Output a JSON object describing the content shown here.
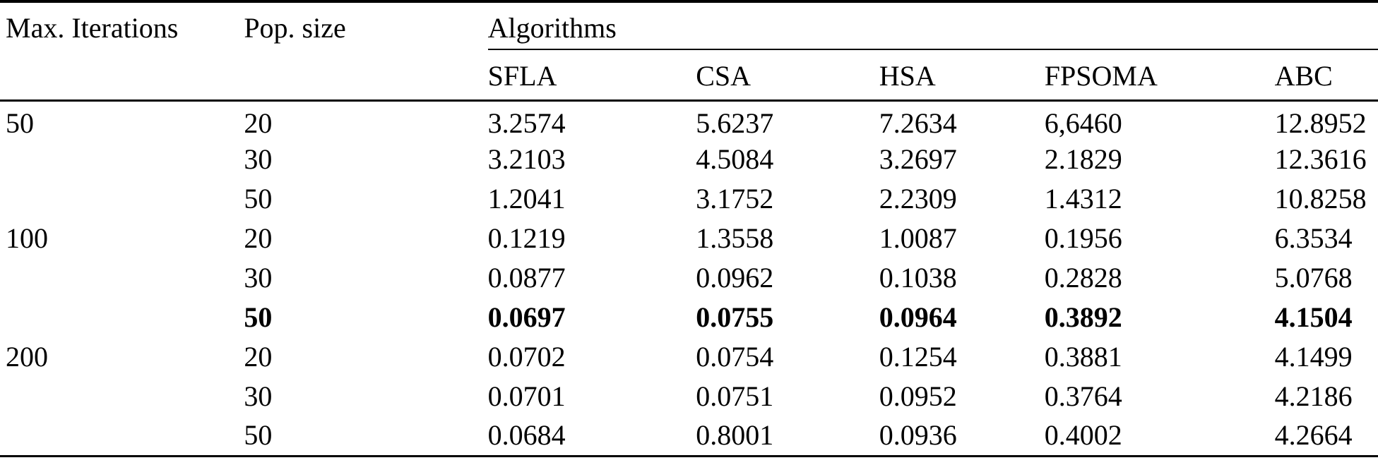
{
  "table": {
    "col1_header": "Max. Iterations",
    "col2_header": "Pop. size",
    "group_header": "Algorithms",
    "algorithm_headers": [
      "SFLA",
      "CSA",
      "HSA",
      "FPSOMA",
      "ABC"
    ],
    "rows": [
      {
        "max_iterations": "50",
        "pop_size": "20",
        "values": [
          "3.2574",
          "5.6237",
          "7.2634",
          "6,6460",
          "12.8952"
        ]
      },
      {
        "max_iterations": "",
        "pop_size": "30",
        "values": [
          "3.2103",
          "4.5084",
          "3.2697",
          "2.1829",
          "12.3616"
        ]
      },
      {
        "max_iterations": "",
        "pop_size": "50",
        "values": [
          "1.2041",
          "3.1752",
          "2.2309",
          "1.4312",
          "10.8258"
        ]
      },
      {
        "max_iterations": "100",
        "pop_size": "20",
        "values": [
          "0.1219",
          "1.3558",
          "1.0087",
          "0.1956",
          "6.3534"
        ]
      },
      {
        "max_iterations": "",
        "pop_size": "30",
        "values": [
          "0.0877",
          "0.0962",
          "0.1038",
          "0.2828",
          "5.0768"
        ]
      },
      {
        "max_iterations": "",
        "pop_size": "50",
        "values": [
          "0.0697",
          "0.0755",
          "0.0964",
          "0.3892",
          "4.1504"
        ]
      },
      {
        "max_iterations": "200",
        "pop_size": "20",
        "values": [
          "0.0702",
          "0.0754",
          "0.1254",
          "0.3881",
          "4.1499"
        ]
      },
      {
        "max_iterations": "",
        "pop_size": "30",
        "values": [
          "0.0701",
          "0.0751",
          "0.0952",
          "0.3764",
          "4.2186"
        ]
      },
      {
        "max_iterations": "",
        "pop_size": "50",
        "values": [
          "0.0684",
          "0.8001",
          "0.0936",
          "0.4002",
          "4.2664"
        ]
      }
    ],
    "colors": {
      "text": "#000000",
      "background": "#ffffff",
      "rule": "#000000"
    }
  }
}
